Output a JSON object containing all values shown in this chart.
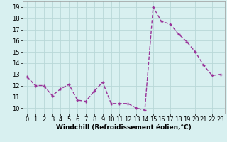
{
  "x": [
    0,
    1,
    2,
    3,
    4,
    5,
    6,
    7,
    8,
    9,
    10,
    11,
    12,
    13,
    14,
    15,
    16,
    17,
    18,
    19,
    20,
    21,
    22,
    23
  ],
  "y": [
    12.8,
    12.0,
    12.0,
    11.1,
    11.7,
    12.1,
    10.7,
    10.6,
    11.5,
    12.3,
    10.4,
    10.4,
    10.4,
    10.0,
    9.8,
    19.0,
    17.7,
    17.5,
    16.6,
    15.9,
    15.0,
    13.8,
    12.9,
    13.0
  ],
  "line_color": "#993399",
  "marker": "+",
  "marker_size": 3,
  "line_width": 1.0,
  "bg_color": "#d8f0f0",
  "grid_color": "#b8d8d8",
  "xlabel": "Windchill (Refroidissement éolien,°C)",
  "xlabel_fontsize": 6.5,
  "tick_fontsize": 6,
  "ylim": [
    9.5,
    19.5
  ],
  "xlim": [
    -0.5,
    23.5
  ],
  "yticks": [
    10,
    11,
    12,
    13,
    14,
    15,
    16,
    17,
    18,
    19
  ],
  "xticks": [
    0,
    1,
    2,
    3,
    4,
    5,
    6,
    7,
    8,
    9,
    10,
    11,
    12,
    13,
    14,
    15,
    16,
    17,
    18,
    19,
    20,
    21,
    22,
    23
  ]
}
